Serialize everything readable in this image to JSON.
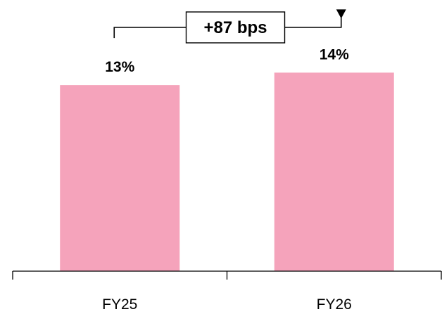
{
  "chart_data": {
    "type": "bar",
    "categories": [
      "FY25",
      "FY26"
    ],
    "values": [
      13.0,
      13.87
    ],
    "data_labels": [
      "13%",
      "14%"
    ],
    "ylim": [
      0,
      16
    ],
    "bar_color": "#f5a3bb",
    "grid": false,
    "legend": "none",
    "annotation": {
      "text": "+87 bps",
      "from": "FY25",
      "to": "FY26"
    }
  }
}
